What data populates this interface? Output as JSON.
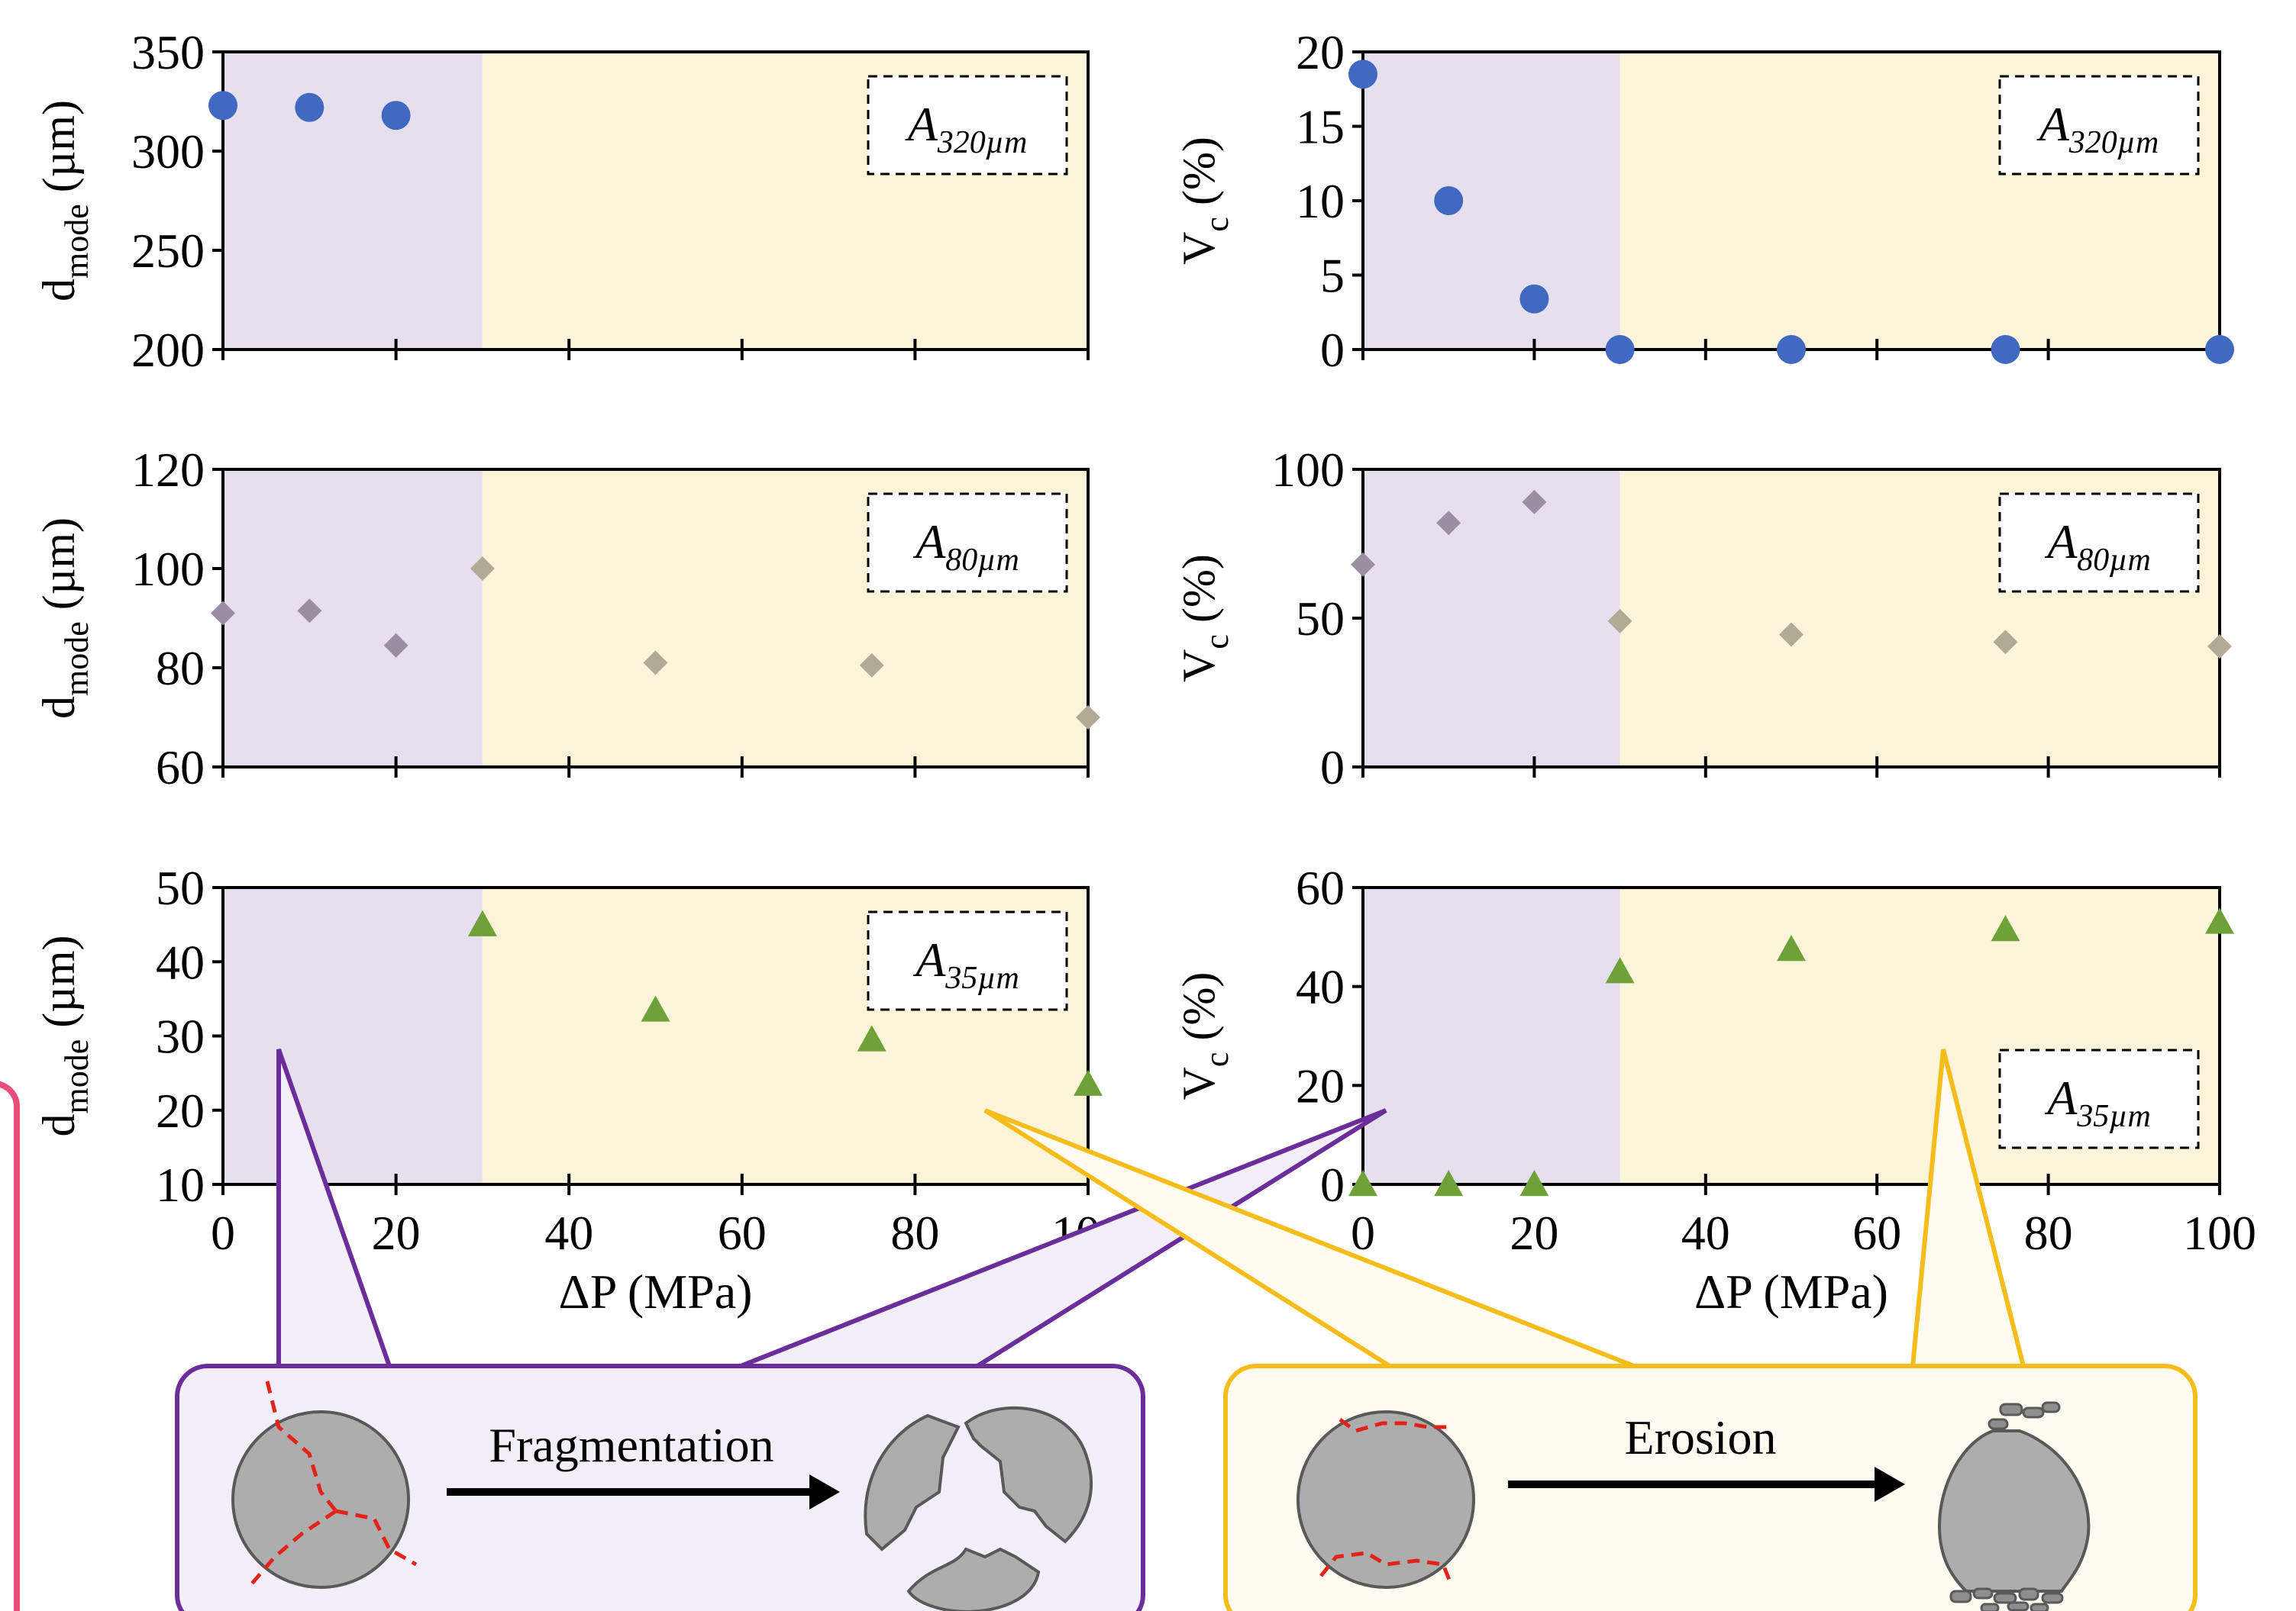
{
  "colors": {
    "regime_fragmentation": "#e6e0ee",
    "regime_erosion": "#fcf4d9",
    "series_320": "#4169c1",
    "series_80_frag": "#9a8fa2",
    "series_80_eros": "#b1aa95",
    "series_35": "#6ea138",
    "callout_fragmentation": "#6b2d9a",
    "callout_erosion": "#f4bd1c",
    "particle": "#aeadad",
    "crack": "#e2231a"
  },
  "chart_data": [
    {
      "id": "dmode-320",
      "type": "scatter",
      "marker": "circle",
      "ylabel": "d",
      "ylabel_sub": "mode",
      "ylabel_unit": " (µm)",
      "xlim": [
        0,
        100
      ],
      "ylim": [
        200,
        350
      ],
      "yticks": [
        "350",
        "300",
        "250",
        "200"
      ],
      "xticks": [],
      "tag": "A",
      "tag_sub": "320µm",
      "regime_boundary_x": 30,
      "x": [
        0,
        10,
        20
      ],
      "y": [
        323,
        322,
        318
      ]
    },
    {
      "id": "vc-320",
      "type": "scatter",
      "marker": "circle",
      "ylabel": "V",
      "ylabel_sub": "c",
      "ylabel_unit": " (%)",
      "xlim": [
        0,
        100
      ],
      "ylim": [
        0,
        20
      ],
      "yticks": [
        "20",
        "15",
        "10",
        "5",
        "0"
      ],
      "xticks": [],
      "tag": "A",
      "tag_sub": "320µm",
      "regime_boundary_x": 30,
      "x": [
        0,
        10,
        20,
        30,
        50,
        75,
        100
      ],
      "y": [
        18.5,
        10,
        3.4,
        0,
        0,
        0,
        0
      ]
    },
    {
      "id": "dmode-80",
      "type": "scatter",
      "marker": "diamond",
      "ylabel": "d",
      "ylabel_sub": "mode",
      "ylabel_unit": " (µm)",
      "xlim": [
        0,
        100
      ],
      "ylim": [
        60,
        120
      ],
      "yticks": [
        "120",
        "100",
        "80",
        "60"
      ],
      "xticks": [],
      "tag": "A",
      "tag_sub": "80µm",
      "regime_boundary_x": 30,
      "x": [
        0,
        10,
        20,
        30,
        50,
        75,
        100
      ],
      "y": [
        91,
        91.5,
        84.5,
        100,
        81,
        80.5,
        70
      ]
    },
    {
      "id": "vc-80",
      "type": "scatter",
      "marker": "diamond",
      "ylabel": "V",
      "ylabel_sub": "c",
      "ylabel_unit": " (%)",
      "xlim": [
        0,
        100
      ],
      "ylim": [
        0,
        100
      ],
      "yticks": [
        "100",
        "50",
        "0"
      ],
      "xticks": [],
      "tag": "A",
      "tag_sub": "80µm",
      "regime_boundary_x": 30,
      "x": [
        0,
        10,
        20,
        30,
        50,
        75,
        100
      ],
      "y": [
        68,
        82,
        89,
        49,
        44.5,
        42,
        40.5
      ]
    },
    {
      "id": "dmode-35",
      "type": "scatter",
      "marker": "triangle",
      "ylabel": "d",
      "ylabel_sub": "mode",
      "ylabel_unit": " (µm)",
      "xlabel": "ΔP (MPa)",
      "xlim": [
        0,
        100
      ],
      "ylim": [
        10,
        50
      ],
      "yticks": [
        "50",
        "40",
        "30",
        "20",
        "10"
      ],
      "xticks": [
        "0",
        "20",
        "40",
        "60",
        "80",
        "100"
      ],
      "tag": "A",
      "tag_sub": "35µm",
      "regime_boundary_x": 30,
      "x": [
        30,
        50,
        75,
        100
      ],
      "y": [
        45,
        33.5,
        29.5,
        23.5
      ]
    },
    {
      "id": "vc-35",
      "type": "scatter",
      "marker": "triangle",
      "ylabel": "V",
      "ylabel_sub": "c",
      "ylabel_unit": " (%)",
      "xlabel": "ΔP (MPa)",
      "xlim": [
        0,
        100
      ],
      "ylim": [
        0,
        60
      ],
      "yticks": [
        "60",
        "40",
        "20",
        "0"
      ],
      "xticks": [
        "0",
        "20",
        "40",
        "60",
        "80",
        "100"
      ],
      "tag": "A",
      "tag_sub": "35µm",
      "regime_boundary_x": 30,
      "x": [
        0,
        10,
        20,
        30,
        50,
        75,
        100
      ],
      "y": [
        0,
        0,
        0,
        43,
        47.5,
        51.5,
        53
      ]
    }
  ],
  "processes": {
    "fragmentation_label": "Fragmentation",
    "erosion_label": "Erosion"
  }
}
